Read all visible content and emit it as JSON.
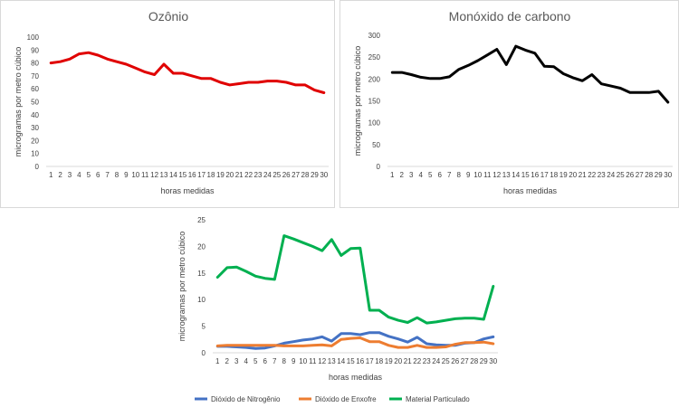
{
  "chart_data": [
    {
      "type": "line",
      "title": "Ozônio",
      "xlabel": "horas medidas",
      "ylabel": "microgramas por metro cúbico",
      "ylim": [
        0,
        100
      ],
      "yticks": [
        "0",
        "10",
        "20",
        "30",
        "40",
        "50",
        "60",
        "70",
        "80",
        "90",
        "100"
      ],
      "x": [
        "1",
        "2",
        "3",
        "4",
        "5",
        "6",
        "7",
        "8",
        "9",
        "10",
        "11",
        "12",
        "13",
        "14",
        "15",
        "16",
        "17",
        "18",
        "19",
        "20",
        "21",
        "22",
        "23",
        "24",
        "25",
        "26",
        "27",
        "28",
        "29",
        "30"
      ],
      "grid": false,
      "legend": "none",
      "series": [
        {
          "color": "#e00000",
          "values": [
            80,
            81,
            83,
            87,
            88,
            86,
            83,
            81,
            79,
            76,
            73,
            71,
            79,
            72,
            72,
            70,
            68,
            68,
            65,
            63,
            64,
            65,
            65,
            66,
            66,
            65,
            63,
            63,
            59,
            57
          ]
        }
      ]
    },
    {
      "type": "line",
      "title": "Monóxido de carbono",
      "xlabel": "horas medidas",
      "ylabel": "microgramas por metro cúbico",
      "ylim": [
        0,
        300
      ],
      "yticks": [
        "0",
        "50",
        "100",
        "150",
        "200",
        "250",
        "300"
      ],
      "x": [
        "1",
        "2",
        "3",
        "4",
        "5",
        "6",
        "7",
        "8",
        "9",
        "10",
        "11",
        "12",
        "13",
        "14",
        "15",
        "16",
        "17",
        "18",
        "19",
        "20",
        "21",
        "22",
        "23",
        "24",
        "25",
        "26",
        "27",
        "28",
        "29",
        "30"
      ],
      "grid": false,
      "legend": "none",
      "series": [
        {
          "color": "#000000",
          "values": [
            215,
            215,
            210,
            204,
            201,
            201,
            205,
            222,
            231,
            242,
            255,
            268,
            233,
            275,
            266,
            259,
            229,
            228,
            212,
            203,
            196,
            210,
            189,
            184,
            179,
            169,
            169,
            169,
            172,
            147
          ]
        }
      ]
    },
    {
      "type": "line",
      "title": "",
      "xlabel": "horas medidas",
      "ylabel": "microgramas por metro cúbico",
      "ylim": [
        0,
        25
      ],
      "yticks": [
        "0",
        "5",
        "10",
        "15",
        "20",
        "25"
      ],
      "x": [
        "1",
        "2",
        "3",
        "4",
        "5",
        "6",
        "7",
        "8",
        "9",
        "10",
        "11",
        "12",
        "13",
        "14",
        "15",
        "16",
        "17",
        "18",
        "19",
        "20",
        "21",
        "22",
        "23",
        "24",
        "25",
        "26",
        "27",
        "28",
        "29",
        "30"
      ],
      "grid": false,
      "legend": "bottom",
      "series": [
        {
          "name": "Dióxido de Nitrogênio",
          "color": "#4472c4",
          "values": [
            1.2,
            1.2,
            1.1,
            1.0,
            0.8,
            0.9,
            1.3,
            1.8,
            2.1,
            2.4,
            2.6,
            3.0,
            2.2,
            3.6,
            3.6,
            3.4,
            3.8,
            3.8,
            3.1,
            2.6,
            2.0,
            2.9,
            1.7,
            1.5,
            1.4,
            1.4,
            1.8,
            1.9,
            2.6,
            3.0
          ]
        },
        {
          "name": "Dióxido de Enxofre",
          "color": "#ed7d31",
          "values": [
            1.3,
            1.4,
            1.4,
            1.4,
            1.4,
            1.4,
            1.4,
            1.3,
            1.3,
            1.3,
            1.4,
            1.5,
            1.3,
            2.5,
            2.7,
            2.8,
            2.1,
            2.1,
            1.4,
            1.0,
            1.0,
            1.4,
            1.0,
            1.0,
            1.1,
            1.6,
            1.9,
            1.9,
            2.0,
            1.7
          ]
        },
        {
          "name": "Material Particulado",
          "color": "#00b050",
          "values": [
            14.2,
            16.0,
            16.1,
            15.3,
            14.4,
            14.0,
            13.8,
            22.0,
            21.4,
            20.7,
            20.0,
            19.2,
            21.3,
            18.3,
            19.6,
            19.7,
            8.0,
            8.0,
            6.7,
            6.1,
            5.7,
            6.6,
            5.6,
            5.8,
            6.1,
            6.4,
            6.5,
            6.5,
            6.3,
            12.5
          ]
        }
      ]
    }
  ]
}
